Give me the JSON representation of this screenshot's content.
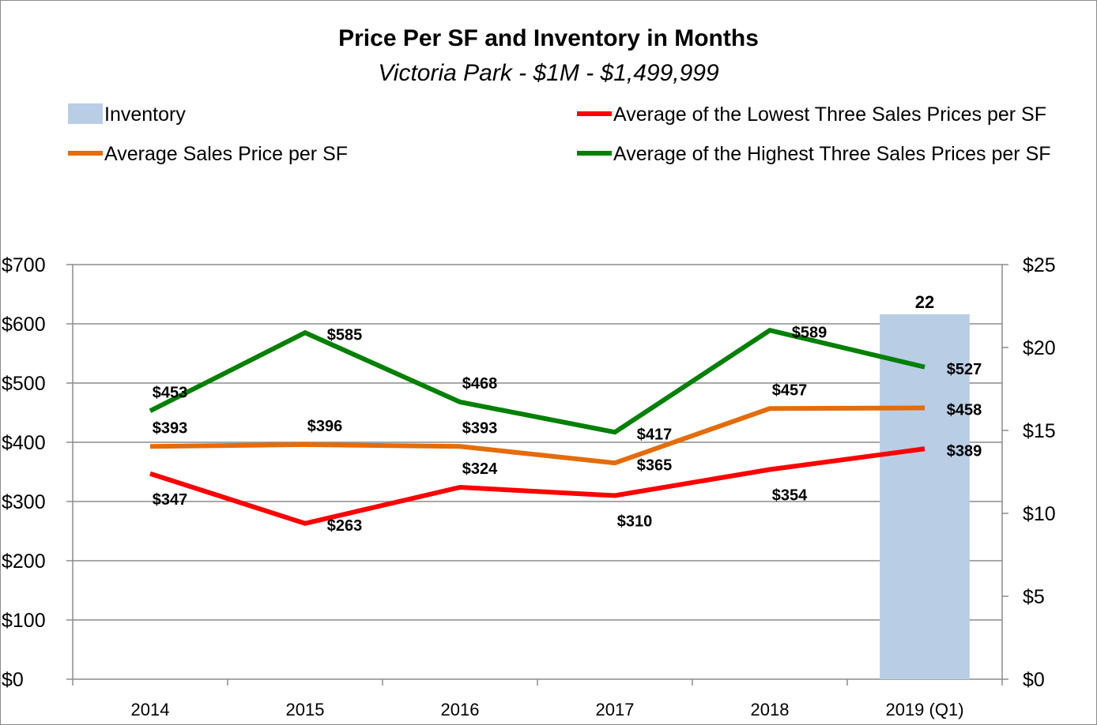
{
  "chart_data": {
    "type": "line",
    "title": "Price Per SF and Inventory in Months",
    "subtitle": "Victoria Park - $1M - $1,499,999",
    "categories": [
      "2014",
      "2015",
      "2016",
      "2017",
      "2018",
      "2019 (Q1)"
    ],
    "y_left": {
      "range": [
        0,
        700
      ],
      "ticks": [
        "$0",
        "$100",
        "$200",
        "$300",
        "$400",
        "$500",
        "$600",
        "$700"
      ],
      "tick_values": [
        0,
        100,
        200,
        300,
        400,
        500,
        600,
        700
      ]
    },
    "y_right": {
      "range": [
        0,
        25
      ],
      "ticks": [
        "$0",
        "$5",
        "$10",
        "$15",
        "$20",
        "$25"
      ],
      "tick_values": [
        0,
        5,
        10,
        15,
        20,
        25
      ]
    },
    "grid": "horizontal",
    "legend_position": "top",
    "bar_series": {
      "name": "Inventory",
      "axis": "right",
      "color": "#b9cde5",
      "values": [
        null,
        null,
        null,
        null,
        null,
        22
      ],
      "labels": [
        "",
        "",
        "",
        "",
        "",
        "22"
      ]
    },
    "series": [
      {
        "name": "Average of the Lowest Three Sales Prices per SF",
        "color": "#ff0000",
        "axis": "left",
        "values": [
          347,
          263,
          324,
          310,
          354,
          389
        ],
        "labels": [
          "$347",
          "$263",
          "$324",
          "$310",
          "$354",
          "$389"
        ],
        "label_pos": [
          "below",
          "right",
          "above",
          "below",
          "below",
          "right"
        ]
      },
      {
        "name": "Average Sales Price per SF",
        "color": "#e46c0a",
        "axis": "left",
        "values": [
          393,
          396,
          393,
          365,
          457,
          458
        ],
        "labels": [
          "$393",
          "$396",
          "$393",
          "$365",
          "$457",
          "$458"
        ],
        "label_pos": [
          "above",
          "above",
          "above",
          "right",
          "above",
          "right"
        ]
      },
      {
        "name": "Average of the Highest Three Sales Prices per SF",
        "color": "#008000",
        "axis": "left",
        "values": [
          453,
          585,
          468,
          417,
          589,
          527
        ],
        "labels": [
          "$453",
          "$585",
          "$468",
          "$417",
          "$589",
          "$527"
        ],
        "label_pos": [
          "above",
          "right",
          "above",
          "right",
          "right",
          "right"
        ]
      }
    ],
    "legend_order": [
      "Inventory",
      "Average of the Lowest Three Sales Prices per SF",
      "Average Sales Price per SF",
      "Average of the Highest Three Sales Prices per SF"
    ]
  }
}
